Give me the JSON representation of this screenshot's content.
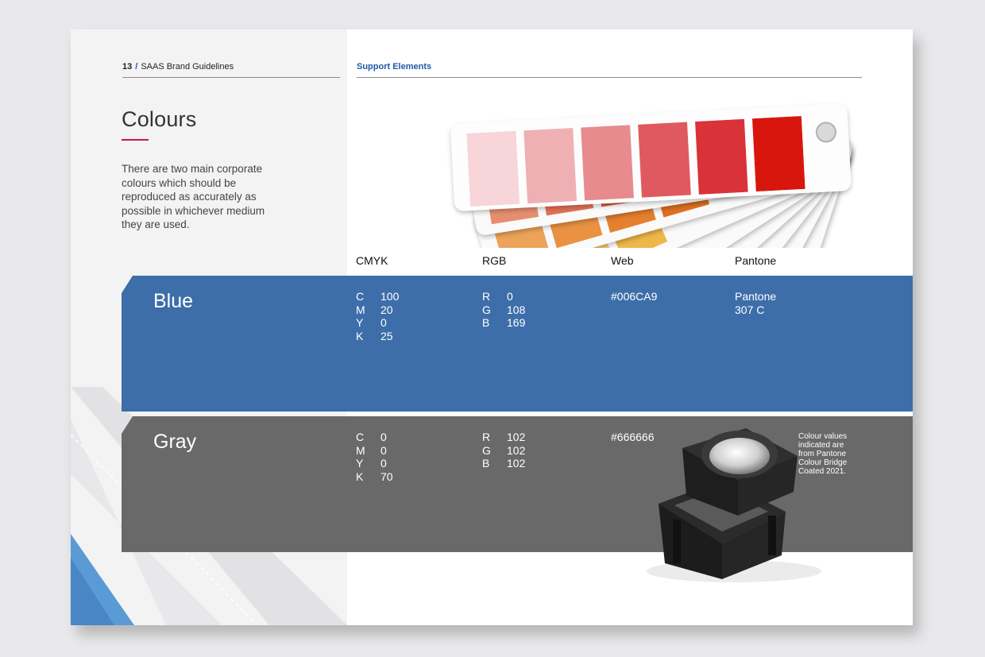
{
  "header": {
    "page_number": "13",
    "separator": "/",
    "document_title": "SAAS Brand Guidelines",
    "section": "Support Elements"
  },
  "title": "Colours",
  "intro": "There are two main corporate colours which should be reproduced as accurately as possible in whichever medium they are used.",
  "columns": {
    "cmyk": "CMYK",
    "rgb": "RGB",
    "web": "Web",
    "pantone": "Pantone"
  },
  "colours": [
    {
      "name": "Blue",
      "swatch": "#3d6ea9",
      "cmyk": [
        {
          "k": "C",
          "v": "100"
        },
        {
          "k": "M",
          "v": "20"
        },
        {
          "k": "Y",
          "v": "0"
        },
        {
          "k": "K",
          "v": "25"
        }
      ],
      "rgb": [
        {
          "k": "R",
          "v": "0"
        },
        {
          "k": "G",
          "v": "108"
        },
        {
          "k": "B",
          "v": "169"
        }
      ],
      "web": "#006CA9",
      "pantone_line1": "Pantone",
      "pantone_line2": "307 C"
    },
    {
      "name": "Gray",
      "swatch": "#696969",
      "cmyk": [
        {
          "k": "C",
          "v": "0"
        },
        {
          "k": "M",
          "v": "0"
        },
        {
          "k": "Y",
          "v": "0"
        },
        {
          "k": "K",
          "v": "70"
        }
      ],
      "rgb": [
        {
          "k": "R",
          "v": "102"
        },
        {
          "k": "G",
          "v": "102"
        },
        {
          "k": "B",
          "v": "102"
        }
      ],
      "web": "#666666"
    }
  ],
  "note": "Colour values indicated are from Pantone Colour Bridge Coated 2021.",
  "accent_color": "#c2185b",
  "link_color": "#1f5aa6"
}
